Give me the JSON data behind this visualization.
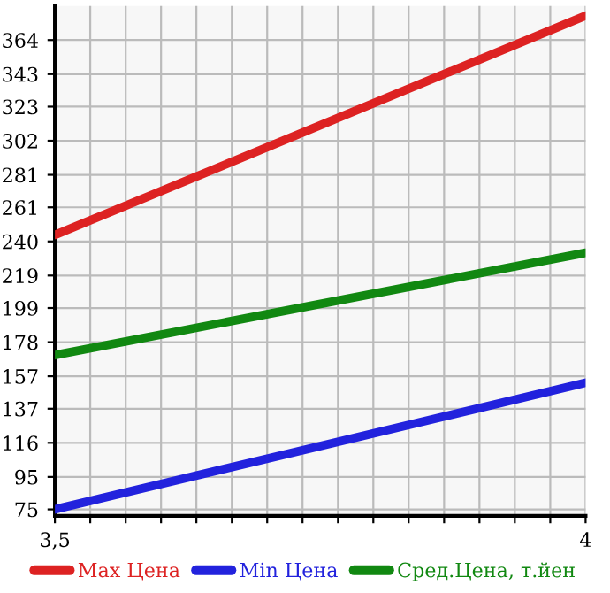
{
  "chart_data": {
    "type": "line",
    "x": [
      3.5,
      4
    ],
    "series": [
      {
        "name": "Max Цена",
        "color": "#dd2222",
        "values": [
          244,
          379
        ]
      },
      {
        "name": "Min Цена",
        "color": "#2222dd",
        "values": [
          75,
          153
        ]
      },
      {
        "name": "Сред.Цена, т.йен",
        "color": "#118811",
        "values": [
          170,
          233
        ]
      }
    ],
    "xlim": [
      3.5,
      4
    ],
    "xticks": [
      {
        "value": 3.5,
        "label": "3,5"
      },
      {
        "value": 3.5333,
        "label": null
      },
      {
        "value": 3.5667,
        "label": null
      },
      {
        "value": 3.6,
        "label": null
      },
      {
        "value": 3.6333,
        "label": null
      },
      {
        "value": 3.6667,
        "label": null
      },
      {
        "value": 3.7,
        "label": null
      },
      {
        "value": 3.7333,
        "label": null
      },
      {
        "value": 3.7667,
        "label": null
      },
      {
        "value": 3.8,
        "label": null
      },
      {
        "value": 3.8333,
        "label": null
      },
      {
        "value": 3.8667,
        "label": null
      },
      {
        "value": 3.9,
        "label": null
      },
      {
        "value": 3.9333,
        "label": null
      },
      {
        "value": 3.9667,
        "label": null
      },
      {
        "value": 4,
        "label": "4"
      }
    ],
    "ylim": [
      71,
      385
    ],
    "yticks": [
      75,
      95,
      116,
      137,
      157,
      178,
      199,
      219,
      240,
      261,
      281,
      302,
      323,
      343,
      364
    ],
    "grid": true,
    "legend": "bottom",
    "marker": "none",
    "line_style": "solid"
  }
}
